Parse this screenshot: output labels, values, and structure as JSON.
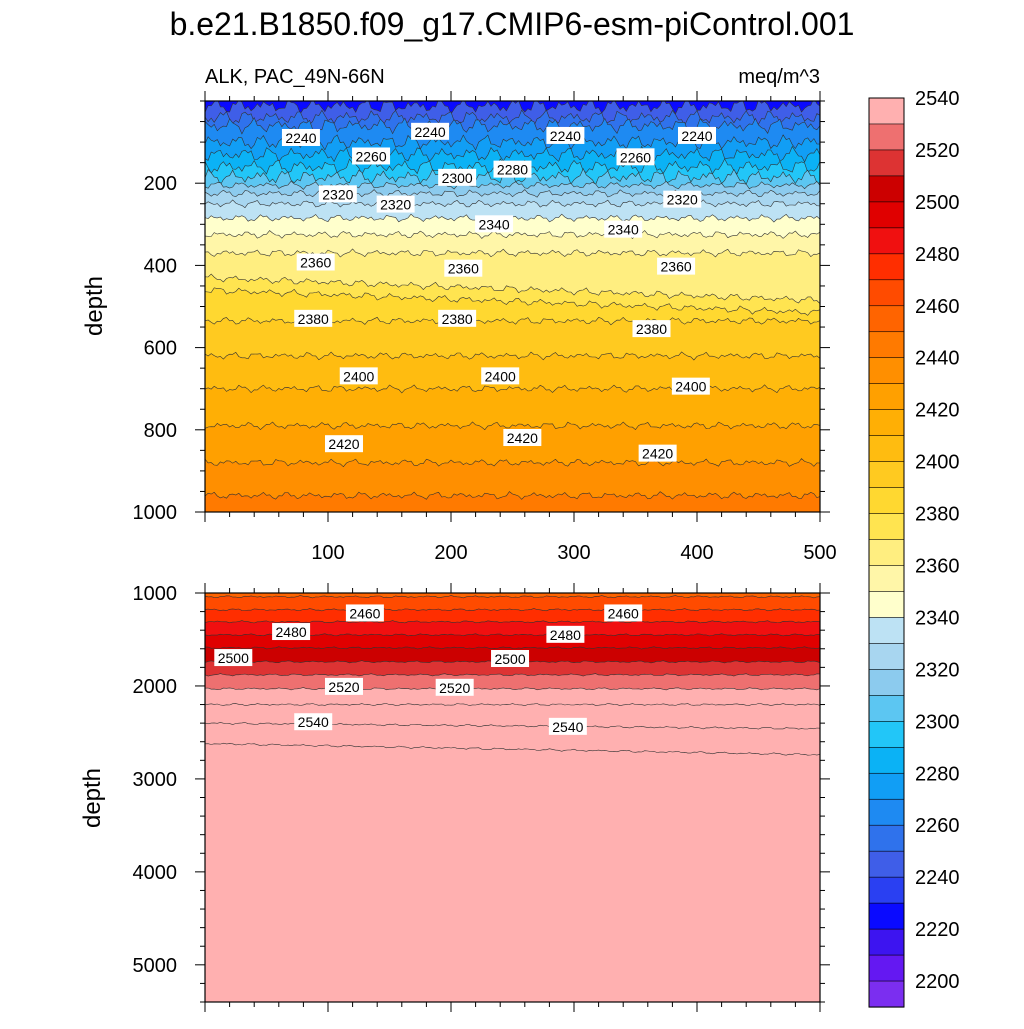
{
  "chart_data": {
    "type": "heatmap",
    "title": "b.e21.B1850.f09_g17.CMIP6-esm-piControl.001",
    "variable_label": "ALK, PAC_49N-66N",
    "units_label": "meq/m^3",
    "colorbar": {
      "ticks": [
        "2200",
        "2220",
        "2240",
        "2260",
        "2280",
        "2300",
        "2320",
        "2340",
        "2360",
        "2380",
        "2400",
        "2420",
        "2440",
        "2460",
        "2480",
        "2500",
        "2520",
        "2540"
      ],
      "colors": [
        "#7b2ef0",
        "#6418f2",
        "#3d14f0",
        "#0a0aff",
        "#2a40f2",
        "#3f5ee8",
        "#2f72ec",
        "#1e8af2",
        "#119ef5",
        "#0bb2f5",
        "#22c6f8",
        "#5cc6f2",
        "#8ccbee",
        "#a8d6f0",
        "#bde2f4",
        "#ffffcc",
        "#fff6a8",
        "#ffee80",
        "#ffe450",
        "#ffd830",
        "#ffca20",
        "#ffbc10",
        "#ffaf05",
        "#ffa000",
        "#ff8f00",
        "#ff7a00",
        "#ff6400",
        "#ff4b00",
        "#ff2e00",
        "#f01010",
        "#e00000",
        "#cc0000",
        "#dd3333",
        "#ee7070",
        "#ffb0b0"
      ]
    },
    "panels": [
      {
        "name": "upper",
        "xlabel": "",
        "ylabel": "depth",
        "xlim": [
          0,
          500
        ],
        "ylim": [
          1000,
          0
        ],
        "xticks": [
          "100",
          "200",
          "300",
          "400",
          "500"
        ],
        "yticks": [
          "200",
          "400",
          "600",
          "800",
          "1000"
        ],
        "contour_labels": [
          {
            "text": "2240",
            "x": 78,
            "y": 90
          },
          {
            "text": "2240",
            "x": 183,
            "y": 75
          },
          {
            "text": "2240",
            "x": 293,
            "y": 85
          },
          {
            "text": "2240",
            "x": 400,
            "y": 85
          },
          {
            "text": "2260",
            "x": 135,
            "y": 135
          },
          {
            "text": "2260",
            "x": 350,
            "y": 137
          },
          {
            "text": "2280",
            "x": 250,
            "y": 167
          },
          {
            "text": "2300",
            "x": 205,
            "y": 187
          },
          {
            "text": "2320",
            "x": 108,
            "y": 227
          },
          {
            "text": "2320",
            "x": 155,
            "y": 252
          },
          {
            "text": "2320",
            "x": 388,
            "y": 240
          },
          {
            "text": "2340",
            "x": 235,
            "y": 300
          },
          {
            "text": "2340",
            "x": 340,
            "y": 313
          },
          {
            "text": "2360",
            "x": 90,
            "y": 393
          },
          {
            "text": "2360",
            "x": 210,
            "y": 408
          },
          {
            "text": "2360",
            "x": 383,
            "y": 403
          },
          {
            "text": "2380",
            "x": 88,
            "y": 530
          },
          {
            "text": "2380",
            "x": 205,
            "y": 530
          },
          {
            "text": "2380",
            "x": 363,
            "y": 555
          },
          {
            "text": "2400",
            "x": 125,
            "y": 670
          },
          {
            "text": "2400",
            "x": 240,
            "y": 670
          },
          {
            "text": "2400",
            "x": 395,
            "y": 695
          },
          {
            "text": "2420",
            "x": 113,
            "y": 835
          },
          {
            "text": "2420",
            "x": 258,
            "y": 820
          },
          {
            "text": "2420",
            "x": 368,
            "y": 858
          }
        ]
      },
      {
        "name": "lower",
        "xlabel": "",
        "ylabel": "depth",
        "xlim": [
          0,
          500
        ],
        "ylim": [
          5400,
          1000
        ],
        "xticks": [],
        "yticks": [
          "1000",
          "2000",
          "3000",
          "4000",
          "5000"
        ],
        "contour_labels": [
          {
            "text": "2460",
            "x": 130,
            "y": 1220
          },
          {
            "text": "2460",
            "x": 340,
            "y": 1220
          },
          {
            "text": "2480",
            "x": 70,
            "y": 1420
          },
          {
            "text": "2480",
            "x": 293,
            "y": 1450
          },
          {
            "text": "2500",
            "x": 23,
            "y": 1700
          },
          {
            "text": "2500",
            "x": 248,
            "y": 1710
          },
          {
            "text": "2520",
            "x": 113,
            "y": 2010
          },
          {
            "text": "2520",
            "x": 203,
            "y": 2020
          },
          {
            "text": "2540",
            "x": 88,
            "y": 2390
          },
          {
            "text": "2540",
            "x": 295,
            "y": 2440
          }
        ]
      }
    ]
  }
}
